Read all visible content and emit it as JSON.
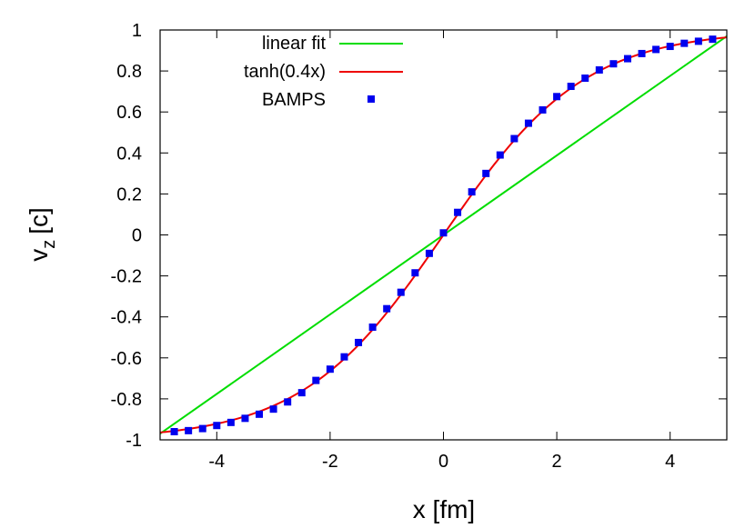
{
  "chart_data": {
    "type": "line",
    "xlabel": "x [fm]",
    "ylabel_main": "v",
    "ylabel_sub": "z",
    "ylabel_unit": "[c]",
    "xlim": [
      -5,
      5
    ],
    "ylim": [
      -1,
      1
    ],
    "xticks": [
      -4,
      -2,
      0,
      2,
      4
    ],
    "yticks": [
      -1,
      -0.8,
      -0.6,
      -0.4,
      -0.2,
      0,
      0.2,
      0.4,
      0.6,
      0.8,
      1
    ],
    "xtick_labels": [
      "-4",
      "-2",
      "0",
      "2",
      "4"
    ],
    "ytick_labels": [
      "-1",
      "-0.8",
      "-0.6",
      "-0.4",
      "-0.2",
      "0",
      "0.2",
      "0.4",
      "0.6",
      "0.8",
      "1"
    ],
    "legend_position": "top-left",
    "series": [
      {
        "name": "linear fit",
        "kind": "line",
        "color": "#00dd00",
        "x": [
          -5,
          5
        ],
        "y": [
          -0.97,
          0.97
        ]
      },
      {
        "name": "tanh(0.4x)",
        "kind": "line",
        "color": "#ee0000",
        "function": "tanh(0.4x)",
        "x": [
          -5,
          -4.5,
          -4,
          -3.5,
          -3,
          -2.5,
          -2,
          -1.5,
          -1,
          -0.5,
          0,
          0.5,
          1,
          1.5,
          2,
          2.5,
          3,
          3.5,
          4,
          4.5,
          5
        ],
        "y": [
          -0.964,
          -0.947,
          -0.922,
          -0.885,
          -0.834,
          -0.762,
          -0.664,
          -0.537,
          -0.38,
          -0.197,
          0,
          0.197,
          0.38,
          0.537,
          0.664,
          0.762,
          0.834,
          0.885,
          0.922,
          0.947,
          0.964
        ]
      },
      {
        "name": "BAMPS",
        "kind": "scatter",
        "color": "#0000ee",
        "x": [
          -4.75,
          -4.5,
          -4.25,
          -4.0,
          -3.75,
          -3.5,
          -3.25,
          -3.0,
          -2.75,
          -2.5,
          -2.25,
          -2.0,
          -1.75,
          -1.5,
          -1.25,
          -1.0,
          -0.75,
          -0.5,
          -0.25,
          0.0,
          0.25,
          0.5,
          0.75,
          1.0,
          1.25,
          1.5,
          1.75,
          2.0,
          2.25,
          2.5,
          2.75,
          3.0,
          3.25,
          3.5,
          3.75,
          4.0,
          4.25,
          4.5,
          4.75
        ],
        "y": [
          -0.96,
          -0.955,
          -0.945,
          -0.93,
          -0.915,
          -0.895,
          -0.875,
          -0.85,
          -0.815,
          -0.77,
          -0.71,
          -0.655,
          -0.595,
          -0.525,
          -0.45,
          -0.36,
          -0.28,
          -0.185,
          -0.09,
          0.01,
          0.11,
          0.21,
          0.3,
          0.39,
          0.47,
          0.545,
          0.61,
          0.675,
          0.725,
          0.765,
          0.805,
          0.835,
          0.86,
          0.885,
          0.905,
          0.92,
          0.935,
          0.945,
          0.955
        ]
      }
    ]
  }
}
